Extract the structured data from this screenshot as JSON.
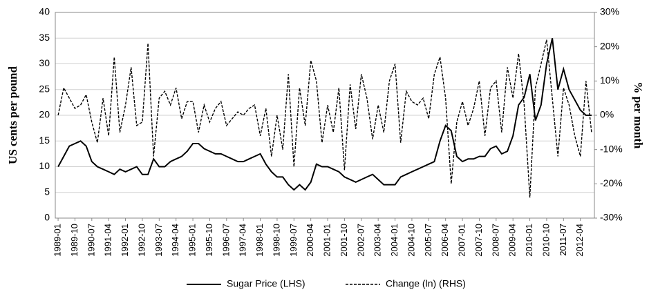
{
  "chart_data": {
    "type": "line",
    "y_label": "US cents per pound",
    "y2_label": "% per month",
    "categories": [
      "1989-01",
      null,
      null,
      "1989-10",
      null,
      null,
      "1990-07",
      null,
      null,
      "1991-04",
      null,
      null,
      "1992-01",
      null,
      null,
      "1992-10",
      null,
      null,
      "1993-07",
      null,
      null,
      "1994-04",
      null,
      null,
      "1995-01",
      null,
      null,
      "1995-10",
      null,
      null,
      "1996-07",
      null,
      null,
      "1997-04",
      null,
      null,
      "1998-01",
      null,
      null,
      "1998-10",
      null,
      null,
      "1999-07",
      null,
      null,
      "2000-04",
      null,
      null,
      "2001-01",
      null,
      null,
      "2001-10",
      null,
      null,
      "2002-07",
      null,
      null,
      "2003-04",
      null,
      null,
      "2004-01",
      null,
      null,
      "2004-10",
      null,
      null,
      "2005-07",
      null,
      null,
      "2006-04",
      null,
      null,
      "2007-01",
      null,
      null,
      "2007-10",
      null,
      null,
      "2008-07",
      null,
      null,
      "2009-04",
      null,
      null,
      "2010-01",
      null,
      null,
      "2010-10",
      null,
      null,
      "2011-07",
      null,
      null,
      "2012-04",
      null,
      null
    ],
    "series": [
      {
        "name": "Sugar Price (LHS)",
        "color": "#000000",
        "dash": false,
        "values": [
          10,
          12,
          14,
          14.5,
          15,
          14,
          11,
          10,
          9.5,
          9,
          8.5,
          9.5,
          9,
          9.5,
          10,
          8.5,
          8.5,
          11.5,
          10,
          10,
          11,
          11.5,
          12,
          13,
          14.5,
          14.5,
          13.5,
          13,
          12.5,
          12.5,
          12,
          11.5,
          11,
          11,
          11.5,
          12,
          12.5,
          10.5,
          9,
          8,
          8,
          6.5,
          5.5,
          6.5,
          5.5,
          7,
          10.5,
          10,
          10,
          9.5,
          9,
          8,
          7.5,
          7,
          7.5,
          8,
          8.5,
          7.5,
          6.5,
          6.5,
          6.5,
          8,
          8.5,
          9,
          9.5,
          10,
          10.5,
          11,
          15,
          18,
          17,
          12,
          11,
          11.5,
          11.5,
          12,
          12,
          13.5,
          14,
          12.5,
          13,
          16,
          22,
          23.5,
          28,
          19,
          22,
          30,
          35,
          25,
          29,
          25,
          23,
          21,
          20,
          20
        ]
      },
      {
        "name": "Change (ln) (RHS)",
        "color": "#000000",
        "dash": true,
        "axis": "y2",
        "values": [
          0,
          8,
          5,
          2,
          3,
          6,
          -2,
          -8,
          5,
          -6,
          17,
          -5,
          3,
          14,
          -3,
          -2,
          21,
          -12,
          5,
          7,
          3,
          8,
          -1,
          4,
          4,
          -5,
          3,
          -2,
          2,
          4,
          -3,
          -1,
          1,
          0,
          2,
          3,
          -6,
          2,
          -12,
          0,
          -10,
          12,
          -15,
          8,
          -3,
          16,
          10,
          -8,
          3,
          -5,
          8,
          -16,
          9,
          -4,
          12,
          5,
          -7,
          3,
          -5,
          10,
          15,
          -8,
          7,
          4,
          3,
          5,
          -1,
          12,
          17,
          5,
          -20,
          -2,
          4,
          -3,
          2,
          10,
          -6,
          8,
          10,
          -5,
          14,
          5,
          18,
          3,
          -24,
          8,
          15,
          22,
          5,
          -12,
          8,
          3,
          -6,
          -12,
          10,
          -5
        ]
      }
    ],
    "ylim": [
      0,
      40
    ],
    "yticks": [
      0,
      5,
      10,
      15,
      20,
      25,
      30,
      35,
      40
    ],
    "y2lim": [
      -30,
      30
    ],
    "y2ticks": [
      {
        "value": -30,
        "label": "-30%"
      },
      {
        "value": -20,
        "label": "-20%"
      },
      {
        "value": -10,
        "label": "-10%"
      },
      {
        "value": 0,
        "label": "0%"
      },
      {
        "value": 10,
        "label": "10%"
      },
      {
        "value": 20,
        "label": "20%"
      },
      {
        "value": 30,
        "label": "30%"
      }
    ],
    "grid": true,
    "legend": "bottom"
  }
}
